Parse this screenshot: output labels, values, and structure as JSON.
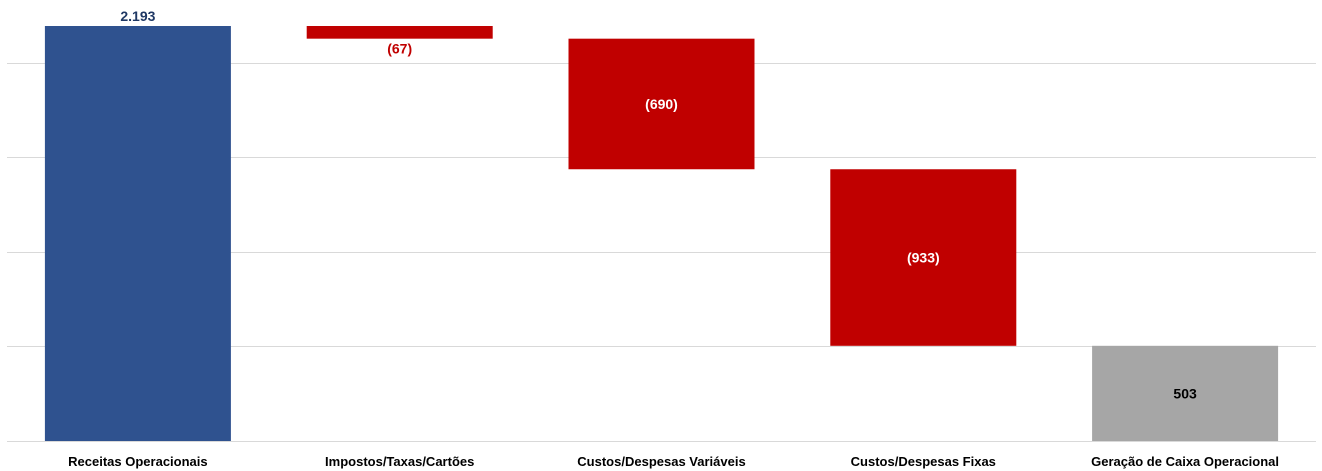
{
  "chart_data": {
    "type": "bar",
    "subtype": "waterfall",
    "title": "",
    "xlabel": "",
    "ylabel": "",
    "ylim": [
      0,
      2193
    ],
    "grid": true,
    "legend": "none",
    "categories": [
      "Receitas Operacionais",
      "Impostos/Taxas/Cartões",
      "Custos/Despesas Variáveis",
      "Custos/Despesas Fixas",
      "Geração de Caixa Operacional"
    ],
    "values": [
      2193,
      -67,
      -690,
      -933,
      503
    ],
    "value_labels": [
      "2.193",
      "(67)",
      "(690)",
      "(933)",
      "503"
    ],
    "bar_kinds": [
      "total",
      "decrease",
      "decrease",
      "decrease",
      "total"
    ],
    "colors": {
      "total_start": "#2F528F",
      "decrease": "#C00000",
      "total_end": "#A6A6A6",
      "grid": "#D9D9D9",
      "label_start": "#1F3864",
      "label_decrease_outside": "#C00000",
      "label_decrease_inside": "#FFFFFF",
      "label_end": "#000000"
    }
  }
}
